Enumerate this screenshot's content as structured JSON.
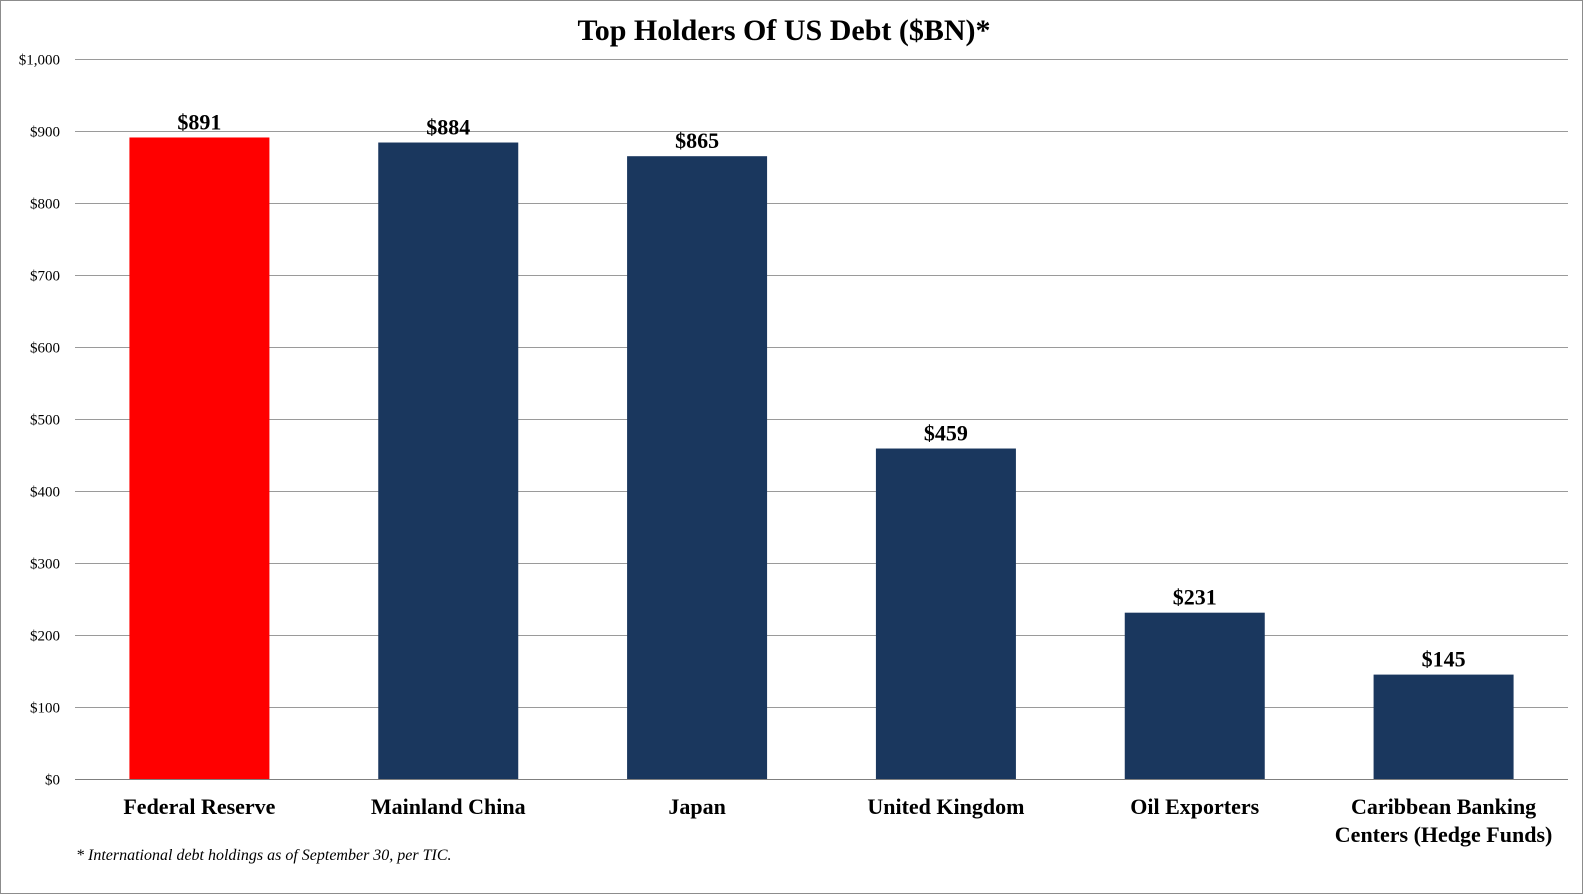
{
  "chart_data": {
    "type": "bar",
    "title": "Top Holders Of US Debt ($BN)*",
    "xlabel": "",
    "ylabel": "",
    "categories": [
      "Federal Reserve",
      "Mainland China",
      "Japan",
      "United Kingdom",
      "Oil Exporters",
      "Caribbean Banking Centers (Hedge Funds)"
    ],
    "category_lines": [
      [
        "Federal Reserve"
      ],
      [
        "Mainland China"
      ],
      [
        "Japan"
      ],
      [
        "United Kingdom"
      ],
      [
        "Oil Exporters"
      ],
      [
        "Caribbean Banking",
        "Centers (Hedge Funds)"
      ]
    ],
    "values": [
      891,
      884,
      865,
      459,
      231,
      145
    ],
    "data_labels": [
      "$891",
      "$884",
      "$865",
      "$459",
      "$231",
      "$145"
    ],
    "bar_colors": [
      "#ff0000",
      "#1a375e",
      "#1a375e",
      "#1a375e",
      "#1a375e",
      "#1a375e"
    ],
    "ylim": [
      0,
      1000
    ],
    "yticks": [
      0,
      100,
      200,
      300,
      400,
      500,
      600,
      700,
      800,
      900,
      1000
    ],
    "ytick_labels": [
      "$0",
      "$100",
      "$200",
      "$300",
      "$400",
      "$500",
      "$600",
      "$700",
      "$800",
      "$900",
      "$1,000"
    ],
    "grid": true,
    "legend": "none",
    "footnote": "* International debt holdings as of September 30, per TIC."
  }
}
